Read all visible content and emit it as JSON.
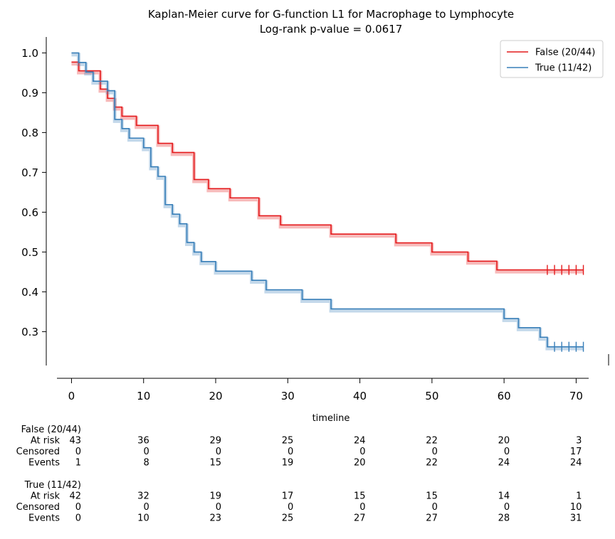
{
  "chart_data": {
    "type": "line",
    "title": "Kaplan-Meier curve for G-function L1 for Macrophage to Lymphocyte",
    "subtitle": "Log-rank p-value = 0.0617",
    "xlabel": "timeline",
    "ylabel": "",
    "xlim": [
      -3.5,
      74.5
    ],
    "ylim": [
      0.215,
      1.04
    ],
    "xticks": [
      0,
      10,
      20,
      30,
      40,
      50,
      60,
      70
    ],
    "yticks": [
      0.3,
      0.4,
      0.5,
      0.6,
      0.7,
      0.8,
      0.9,
      1.0
    ],
    "grid": false,
    "legend_position": "top-right",
    "series": [
      {
        "name": "False (20/44)",
        "color": "#e41a1c",
        "steps": [
          [
            0,
            0.977
          ],
          [
            1,
            0.955
          ],
          [
            4,
            0.909
          ],
          [
            5,
            0.886
          ],
          [
            6,
            0.864
          ],
          [
            7,
            0.841
          ],
          [
            9,
            0.818
          ],
          [
            12,
            0.773
          ],
          [
            14,
            0.75
          ],
          [
            17,
            0.682
          ],
          [
            19,
            0.659
          ],
          [
            22,
            0.636
          ],
          [
            26,
            0.591
          ],
          [
            29,
            0.568
          ],
          [
            36,
            0.545
          ],
          [
            45,
            0.523
          ],
          [
            50,
            0.5
          ],
          [
            55,
            0.477
          ],
          [
            59,
            0.455
          ]
        ],
        "end": 71,
        "censored": [
          66,
          67,
          68,
          69,
          70,
          71
        ]
      },
      {
        "name": "True (11/42)",
        "color": "#377eb8",
        "steps": [
          [
            0,
            1.0
          ],
          [
            1,
            0.976
          ],
          [
            2,
            0.952
          ],
          [
            3,
            0.929
          ],
          [
            5,
            0.905
          ],
          [
            6,
            0.833
          ],
          [
            7,
            0.81
          ],
          [
            8,
            0.786
          ],
          [
            10,
            0.762
          ],
          [
            11,
            0.714
          ],
          [
            12,
            0.69
          ],
          [
            13,
            0.619
          ],
          [
            14,
            0.595
          ],
          [
            15,
            0.571
          ],
          [
            16,
            0.524
          ],
          [
            17,
            0.5
          ],
          [
            18,
            0.476
          ],
          [
            20,
            0.452
          ],
          [
            25,
            0.429
          ],
          [
            27,
            0.405
          ],
          [
            32,
            0.381
          ],
          [
            36,
            0.357
          ],
          [
            60,
            0.333
          ],
          [
            62,
            0.31
          ],
          [
            65,
            0.286
          ],
          [
            66,
            0.262
          ]
        ],
        "end": 71,
        "censored": [
          67,
          68,
          69,
          70,
          71
        ]
      }
    ],
    "risk_table": {
      "times": [
        0,
        10,
        20,
        30,
        40,
        50,
        60,
        70
      ],
      "row_labels": [
        "At risk",
        "Censored",
        "Events"
      ],
      "groups": [
        {
          "name": "False (20/44)",
          "at_risk": [
            43,
            36,
            29,
            25,
            24,
            22,
            20,
            3
          ],
          "censored": [
            0,
            0,
            0,
            0,
            0,
            0,
            0,
            17
          ],
          "events": [
            1,
            8,
            15,
            19,
            20,
            22,
            24,
            24
          ]
        },
        {
          "name": "True (11/42)",
          "at_risk": [
            42,
            32,
            19,
            17,
            15,
            15,
            14,
            1
          ],
          "censored": [
            0,
            0,
            0,
            0,
            0,
            0,
            0,
            10
          ],
          "events": [
            0,
            10,
            23,
            25,
            27,
            27,
            28,
            31
          ]
        }
      ]
    }
  }
}
